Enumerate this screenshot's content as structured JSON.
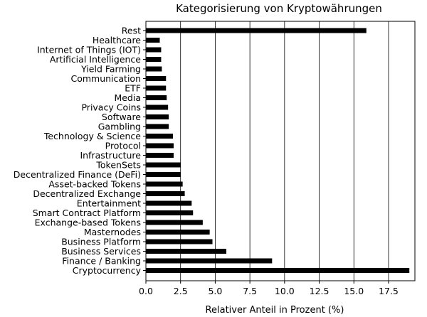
{
  "chart_data": {
    "type": "bar",
    "orientation": "horizontal",
    "title": "Kategorisierung von Kryptowährungen",
    "xlabel": "Relativer Anteil in Prozent (%)",
    "ylabel": "",
    "xlim": [
      0,
      19.4
    ],
    "xticks": [
      "0.0",
      "2.5",
      "5.0",
      "7.5",
      "10.0",
      "12.5",
      "15.0",
      "17.5"
    ],
    "grid": "vertical",
    "bar_color": "#000000",
    "categories": [
      "Rest",
      "Healthcare",
      "Internet of Things (IOT)",
      "Artificial Intelligence",
      "Yield Farming",
      "Communication",
      "ETF",
      "Media",
      "Privacy Coins",
      "Software",
      "Gambling",
      "Technology & Science",
      "Protocol",
      "Infrastructure",
      "TokenSets",
      "Decentralized Finance (DeFi)",
      "Asset-backed Tokens",
      "Decentralized Exchange",
      "Entertainment",
      "Smart Contract Platform",
      "Exchange-based Tokens",
      "Masternodes",
      "Business Platform",
      "Business Services",
      "Finance / Banking",
      "Cryptocurrency"
    ],
    "values": [
      15.9,
      1.0,
      1.1,
      1.1,
      1.15,
      1.45,
      1.45,
      1.5,
      1.6,
      1.65,
      1.65,
      1.95,
      2.0,
      2.0,
      2.5,
      2.5,
      2.65,
      2.8,
      3.3,
      3.4,
      4.1,
      4.6,
      4.8,
      5.8,
      9.1,
      19.0
    ]
  }
}
